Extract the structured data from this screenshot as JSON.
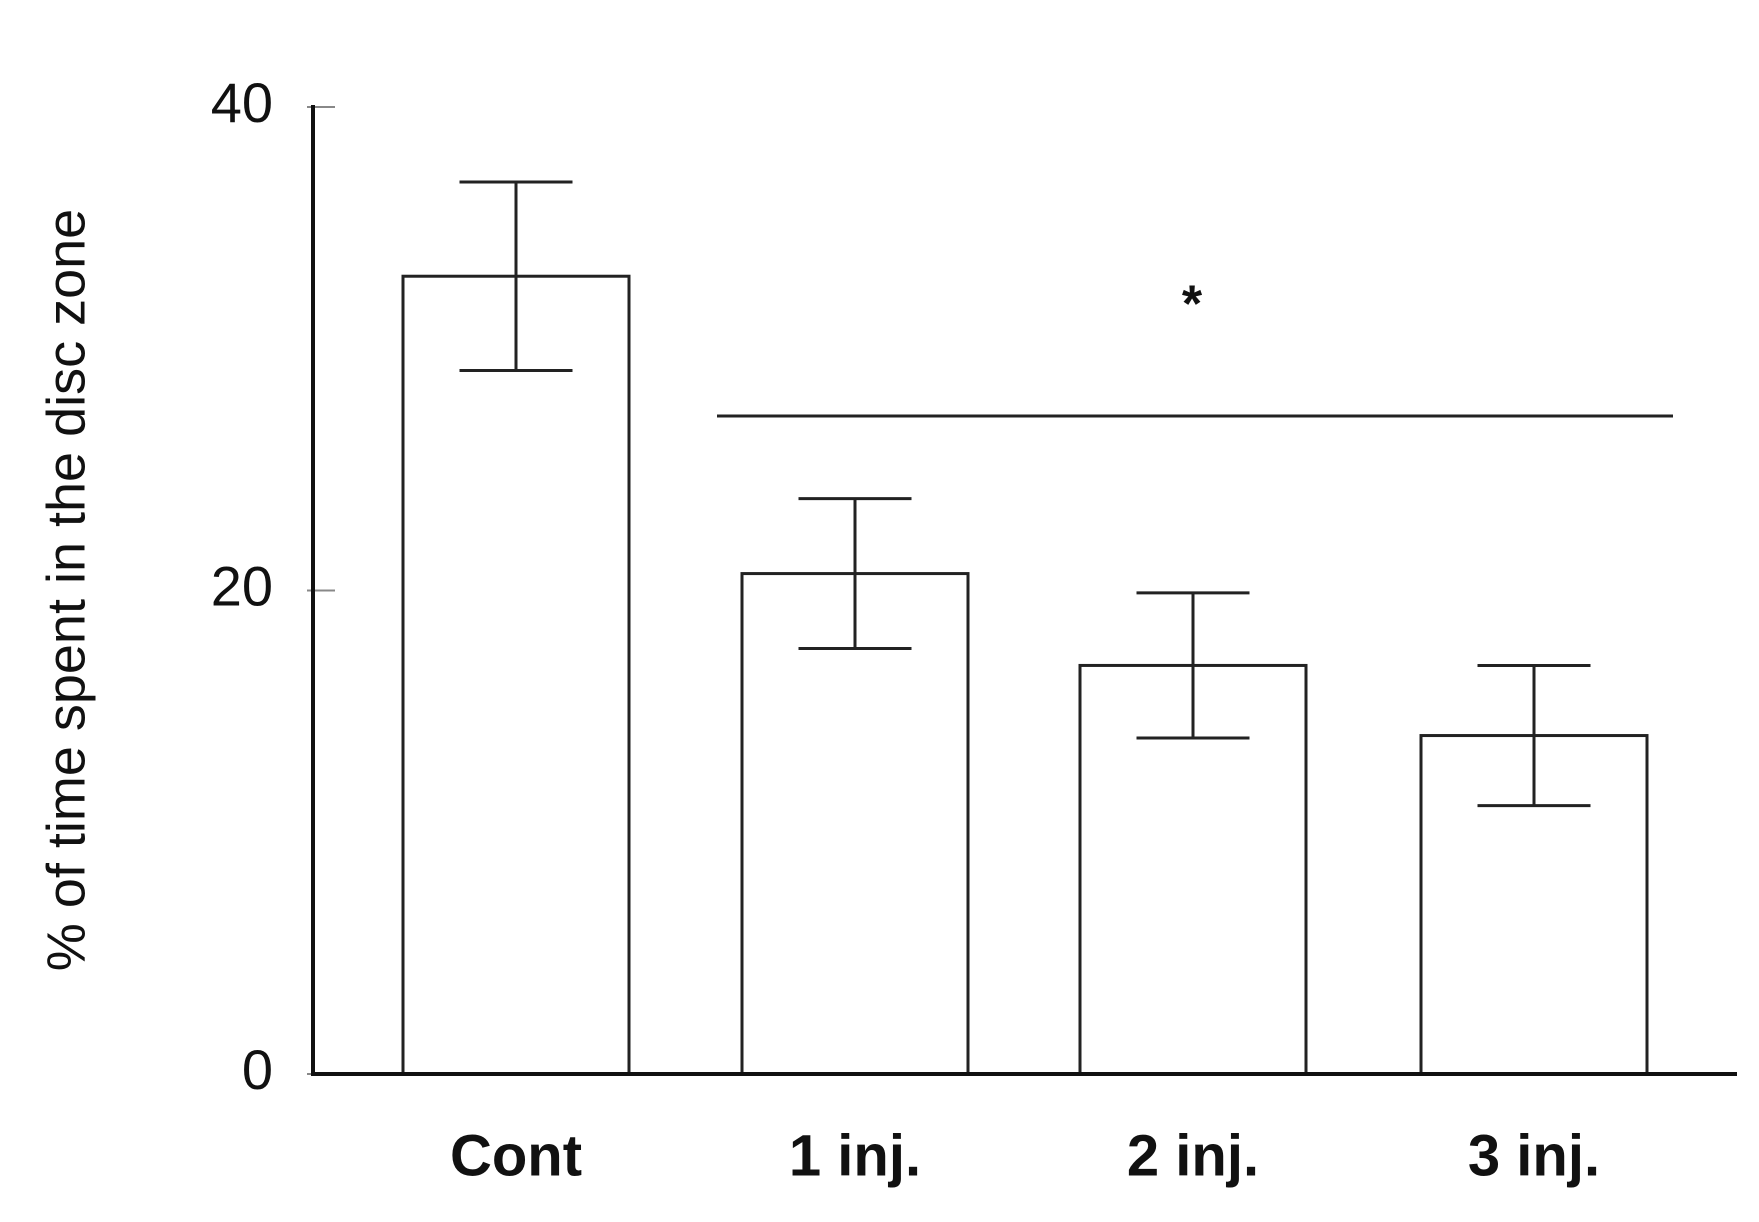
{
  "chart_data": {
    "type": "bar",
    "y_label": "% of time spent in the disc zone",
    "categories": [
      "Cont",
      "1 inj.",
      "2 inj.",
      "3 inj."
    ],
    "values": [
      33.0,
      20.7,
      16.9,
      14.0
    ],
    "errors": [
      3.9,
      3.1,
      3.0,
      2.9
    ],
    "color": "#ffffff",
    "ylim": [
      0,
      40
    ],
    "yticks": [
      0,
      20,
      40
    ],
    "annotations": [
      "*"
    ]
  }
}
